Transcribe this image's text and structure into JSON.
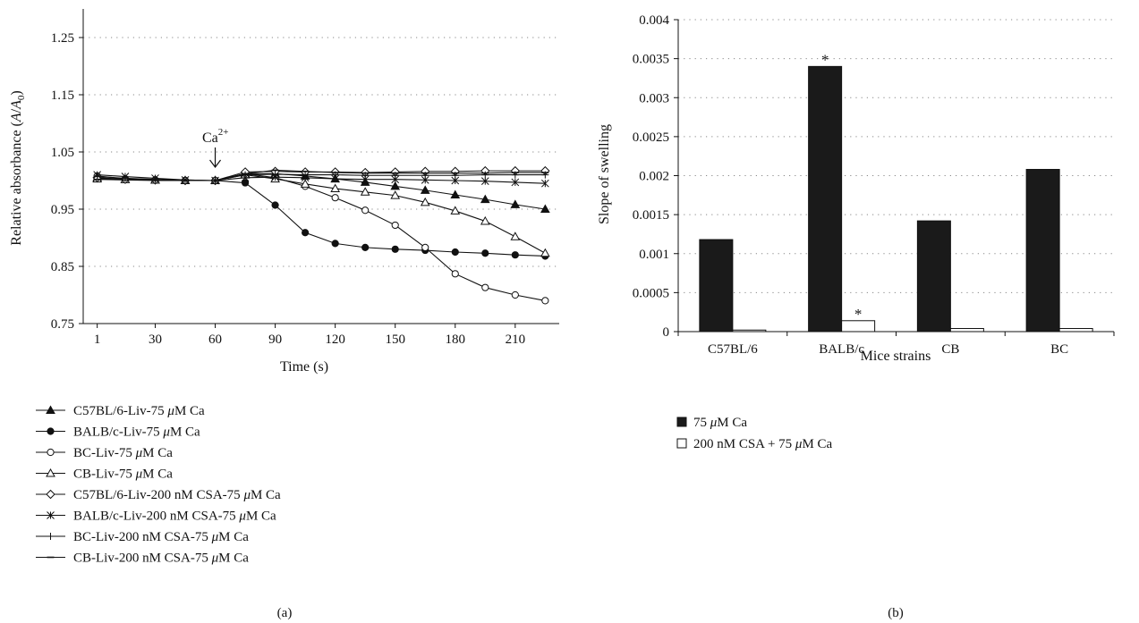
{
  "panel_a": {
    "caption": "(a)",
    "annotation": "Ca",
    "annotation_sup": "2+",
    "chart_data": {
      "type": "line",
      "xlabel": "Time (s)",
      "ylabel_main": "Relative absorbance (",
      "ylabel_A": "A",
      "ylabel_slash": "/",
      "ylabel_A0": "A",
      "ylabel_sub": "0",
      "ylabel_close": ")",
      "x_ticks": [
        "1",
        "30",
        "60",
        "90",
        "120",
        "150",
        "180",
        "210"
      ],
      "x_tick_values": [
        1,
        30,
        60,
        90,
        120,
        150,
        180,
        210
      ],
      "y_ticks": [
        "0.75",
        "0.85",
        "0.95",
        "1.05",
        "1.15",
        "1.25"
      ],
      "y_tick_values": [
        0.75,
        0.85,
        0.95,
        1.05,
        1.15,
        1.25
      ],
      "xlim": [
        -6,
        232
      ],
      "ylim": [
        0.75,
        1.3
      ],
      "grid": "horizontal-dotted",
      "annotation_x": 60,
      "series": [
        {
          "name": "C57BL/6-Liv-75 μM Ca",
          "marker": "triangle-filled",
          "x": [
            1,
            15,
            30,
            45,
            60,
            75,
            90,
            105,
            120,
            135,
            150,
            165,
            180,
            195,
            210,
            225
          ],
          "y": [
            1.005,
            1.002,
            1.001,
            1.0,
            1.0,
            1.012,
            1.012,
            1.008,
            1.003,
            0.997,
            0.99,
            0.983,
            0.975,
            0.967,
            0.958,
            0.95
          ]
        },
        {
          "name": "BALB/c-Liv-75 μM Ca",
          "marker": "circle-filled",
          "x": [
            1,
            15,
            30,
            45,
            60,
            75,
            90,
            105,
            120,
            135,
            150,
            165,
            180,
            195,
            210,
            225
          ],
          "y": [
            1.003,
            1.002,
            1.001,
            1.0,
            1.0,
            0.996,
            0.957,
            0.909,
            0.89,
            0.883,
            0.88,
            0.878,
            0.875,
            0.873,
            0.87,
            0.868
          ]
        },
        {
          "name": "BC-Liv-75 μM Ca",
          "marker": "circle-open",
          "x": [
            1,
            15,
            30,
            45,
            60,
            75,
            90,
            105,
            120,
            135,
            150,
            165,
            180,
            195,
            210,
            225
          ],
          "y": [
            1.008,
            1.003,
            1.001,
            1.0,
            1.0,
            1.012,
            1.005,
            0.99,
            0.97,
            0.948,
            0.922,
            0.883,
            0.837,
            0.813,
            0.8,
            0.79
          ]
        },
        {
          "name": "CB-Liv-75 μM Ca",
          "marker": "triangle-open",
          "x": [
            1,
            15,
            30,
            45,
            60,
            75,
            90,
            105,
            120,
            135,
            150,
            165,
            180,
            195,
            210,
            225
          ],
          "y": [
            1.003,
            1.002,
            1.001,
            1.0,
            1.0,
            1.01,
            1.003,
            0.994,
            0.986,
            0.98,
            0.974,
            0.962,
            0.947,
            0.929,
            0.902,
            0.873
          ]
        },
        {
          "name": "C57BL/6-Liv-200 nM CSA-75 μM Ca",
          "marker": "diamond-open",
          "x": [
            1,
            15,
            30,
            45,
            60,
            75,
            90,
            105,
            120,
            135,
            150,
            165,
            180,
            195,
            210,
            225
          ],
          "y": [
            1.005,
            1.002,
            1.001,
            1.0,
            1.0,
            1.015,
            1.016,
            1.015,
            1.015,
            1.014,
            1.015,
            1.016,
            1.016,
            1.017,
            1.017,
            1.017
          ]
        },
        {
          "name": "BALB/c-Liv-200 nM CSA-75 μM Ca",
          "marker": "star",
          "x": [
            1,
            15,
            30,
            45,
            60,
            75,
            90,
            105,
            120,
            135,
            150,
            165,
            180,
            195,
            210,
            225
          ],
          "y": [
            1.01,
            1.007,
            1.004,
            1.001,
            1.0,
            1.005,
            1.006,
            1.005,
            1.003,
            1.002,
            1.002,
            1.001,
            1.0,
            0.999,
            0.997,
            0.995
          ]
        },
        {
          "name": "BC-Liv-200 nM CSA-75 μM Ca",
          "marker": "plus",
          "x": [
            1,
            15,
            30,
            45,
            60,
            75,
            90,
            105,
            120,
            135,
            150,
            165,
            180,
            195,
            210,
            225
          ],
          "y": [
            1.007,
            1.004,
            1.002,
            1.001,
            1.0,
            1.01,
            1.011,
            1.01,
            1.01,
            1.009,
            1.009,
            1.009,
            1.009,
            1.01,
            1.01,
            1.01
          ]
        },
        {
          "name": "CB-Liv-200 nM CSA-75 μM Ca",
          "marker": "dash",
          "x": [
            1,
            15,
            30,
            45,
            60,
            75,
            90,
            105,
            120,
            135,
            150,
            165,
            180,
            195,
            210,
            225
          ],
          "y": [
            1.002,
            1.001,
            1.0,
            1.0,
            1.0,
            1.012,
            1.018,
            1.016,
            1.014,
            1.013,
            1.013,
            1.013,
            1.013,
            1.013,
            1.014,
            1.014
          ]
        }
      ]
    },
    "legend": [
      {
        "pre": "C57BL/6-Liv-75 ",
        "mu": "μ",
        "post": "M Ca"
      },
      {
        "pre": "BALB/c-Liv-75 ",
        "mu": "μ",
        "post": "M Ca"
      },
      {
        "pre": "BC-Liv-75 ",
        "mu": "μ",
        "post": "M Ca"
      },
      {
        "pre": "CB-Liv-75 ",
        "mu": "μ",
        "post": "M Ca"
      },
      {
        "pre": "C57BL/6-Liv-200 nM CSA-75 ",
        "mu": "μ",
        "post": "M Ca"
      },
      {
        "pre": "BALB/c-Liv-200 nM CSA-75 ",
        "mu": "μ",
        "post": "M Ca"
      },
      {
        "pre": "BC-Liv-200 nM CSA-75 ",
        "mu": "μ",
        "post": "M Ca"
      },
      {
        "pre": "CB-Liv-200 nM CSA-75 ",
        "mu": "μ",
        "post": "M Ca"
      }
    ]
  },
  "panel_b": {
    "caption": "(b)",
    "chart_data": {
      "type": "bar",
      "xlabel": "Mice strains",
      "ylabel": "Slope of swelling",
      "categories": [
        "C57BL/6",
        "BALB/c",
        "CB",
        "BC"
      ],
      "y_ticks": [
        "0",
        "0.0005",
        "0.001",
        "0.0015",
        "0.002",
        "0.0025",
        "0.003",
        "0.0035",
        "0.004"
      ],
      "y_tick_values": [
        0,
        0.0005,
        0.001,
        0.0015,
        0.002,
        0.0025,
        0.003,
        0.0035,
        0.004
      ],
      "ylim": [
        0,
        0.004
      ],
      "grid": "horizontal-dotted",
      "series": [
        {
          "name": "75 μM Ca",
          "color": "#1a1a1a",
          "values": [
            0.00118,
            0.0034,
            0.00142,
            0.00208
          ]
        },
        {
          "name": "200 nM CSA + 75 μM Ca",
          "color": "#ffffff",
          "values": [
            2e-05,
            0.00014,
            4e-05,
            4e-05
          ]
        }
      ],
      "annotations": [
        {
          "text": "*",
          "category": 1,
          "series": 0
        },
        {
          "text": "*",
          "category": 1,
          "series": 1
        }
      ]
    },
    "legend": [
      {
        "pre": "75 ",
        "mu": "μ",
        "post": "M Ca"
      },
      {
        "pre": "200 nM CSA + 75 ",
        "mu": "μ",
        "post": "M Ca"
      }
    ]
  }
}
